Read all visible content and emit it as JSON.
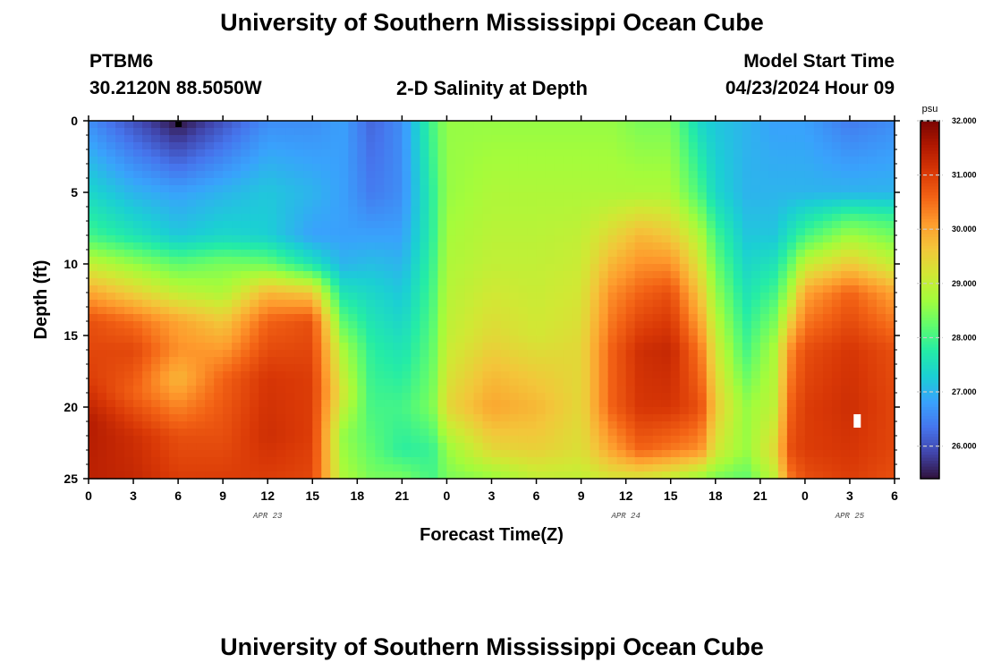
{
  "header": {
    "title": "University of Southern Mississippi Ocean Cube",
    "station": "PTBM6",
    "coords": "30.2120N  88.5050W",
    "plot_title": "2-D Salinity at Depth",
    "model_label": "Model Start Time",
    "model_time": "04/23/2024 Hour 09"
  },
  "footer": {
    "title": "University of Southern Mississippi Ocean Cube"
  },
  "chart_data": {
    "type": "heatmap",
    "title": "2-D Salinity at Depth",
    "xlabel": "Forecast Time(Z)",
    "ylabel": "Depth (ft)",
    "x_hours": [
      0,
      54
    ],
    "x_tick_labels": [
      "0",
      "3",
      "6",
      "9",
      "12",
      "15",
      "18",
      "21",
      "0",
      "3",
      "6",
      "9",
      "12",
      "15",
      "18",
      "21",
      "0",
      "3",
      "6"
    ],
    "date_labels": [
      {
        "hour": 12,
        "text": "APR 23"
      },
      {
        "hour": 36,
        "text": "APR 24"
      },
      {
        "hour": 51,
        "text": "APR 25"
      }
    ],
    "y_ticks": [
      0,
      5,
      10,
      15,
      20,
      25
    ],
    "ylim": [
      0,
      25
    ],
    "colorbar": {
      "unit": "psu",
      "range": [
        25.4,
        32.0
      ],
      "tick_labels": [
        "32.000",
        "31.000",
        "30.000",
        "29.000",
        "28.000",
        "27.000",
        "26.000"
      ],
      "tick_values": [
        32,
        31,
        30,
        29,
        28,
        27,
        26
      ],
      "colors": [
        "#30123b",
        "#4145ab",
        "#4675ed",
        "#39a2fc",
        "#1bcfd4",
        "#24eca6",
        "#61fc6c",
        "#a4fc3b",
        "#d1e834",
        "#f3c63a",
        "#fe9b2d",
        "#f36315",
        "#d93806",
        "#b11901",
        "#7a0402"
      ]
    },
    "salinity_columns": [
      {
        "hour": 0,
        "profile": [
          [
            0,
            26.6
          ],
          [
            5,
            27.4
          ],
          [
            8,
            28.0
          ],
          [
            10,
            29.0
          ],
          [
            12,
            30.0
          ],
          [
            14,
            30.8
          ],
          [
            18,
            31.0
          ],
          [
            21,
            31.5
          ],
          [
            25,
            31.4
          ]
        ]
      },
      {
        "hour": 3,
        "profile": [
          [
            0,
            26.0
          ],
          [
            5,
            27.0
          ],
          [
            8,
            27.6
          ],
          [
            10,
            28.6
          ],
          [
            12,
            29.5
          ],
          [
            14,
            30.5
          ],
          [
            16,
            30.9
          ],
          [
            19,
            30.6
          ],
          [
            22,
            31.2
          ],
          [
            25,
            31.3
          ]
        ]
      },
      {
        "hour": 6,
        "profile": [
          [
            0,
            25.4
          ],
          [
            5,
            26.8
          ],
          [
            8,
            27.2
          ],
          [
            10,
            28.2
          ],
          [
            12,
            29.0
          ],
          [
            14,
            30.0
          ],
          [
            16,
            30.2
          ],
          [
            18,
            29.8
          ],
          [
            22,
            30.8
          ],
          [
            25,
            31.0
          ]
        ]
      },
      {
        "hour": 9,
        "profile": [
          [
            0,
            26.0
          ],
          [
            5,
            27.0
          ],
          [
            8,
            27.4
          ],
          [
            10,
            28.4
          ],
          [
            12,
            28.8
          ],
          [
            14,
            29.6
          ],
          [
            18,
            30.6
          ],
          [
            22,
            30.8
          ],
          [
            25,
            31.0
          ]
        ]
      },
      {
        "hour": 12,
        "profile": [
          [
            0,
            26.6
          ],
          [
            5,
            27.2
          ],
          [
            8,
            27.3
          ],
          [
            10,
            28.3
          ],
          [
            12,
            29.8
          ],
          [
            14,
            30.6
          ],
          [
            18,
            31.1
          ],
          [
            22,
            31.2
          ],
          [
            25,
            31.0
          ]
        ]
      },
      {
        "hour": 15,
        "profile": [
          [
            0,
            26.6
          ],
          [
            5,
            27.0
          ],
          [
            8,
            26.8
          ],
          [
            10,
            27.6
          ],
          [
            12,
            29.6
          ],
          [
            14,
            30.8
          ],
          [
            18,
            31.0
          ],
          [
            22,
            31.0
          ],
          [
            25,
            30.9
          ]
        ]
      },
      {
        "hour": 17,
        "profile": [
          [
            0,
            26.8
          ],
          [
            5,
            26.8
          ],
          [
            8,
            26.8
          ],
          [
            10,
            27.0
          ],
          [
            12,
            27.6
          ],
          [
            16,
            28.8
          ],
          [
            19,
            29.2
          ],
          [
            22,
            28.6
          ],
          [
            25,
            28.8
          ]
        ]
      },
      {
        "hour": 19,
        "profile": [
          [
            0,
            26.2
          ],
          [
            5,
            26.4
          ],
          [
            8,
            26.8
          ],
          [
            12,
            27.4
          ],
          [
            16,
            27.8
          ],
          [
            20,
            28.0
          ],
          [
            23,
            28.2
          ],
          [
            25,
            28.4
          ]
        ]
      },
      {
        "hour": 21,
        "profile": [
          [
            0,
            26.6
          ],
          [
            5,
            26.6
          ],
          [
            8,
            26.8
          ],
          [
            12,
            27.2
          ],
          [
            16,
            27.6
          ],
          [
            20,
            28.0
          ],
          [
            23,
            27.8
          ],
          [
            25,
            28.4
          ]
        ]
      },
      {
        "hour": 23,
        "profile": [
          [
            0,
            28.0
          ],
          [
            5,
            27.8
          ],
          [
            8,
            27.8
          ],
          [
            12,
            28.0
          ],
          [
            16,
            28.2
          ],
          [
            20,
            28.4
          ],
          [
            23,
            27.9
          ],
          [
            25,
            28.0
          ]
        ]
      },
      {
        "hour": 24,
        "profile": [
          [
            0,
            28.6
          ],
          [
            5,
            28.6
          ],
          [
            10,
            28.8
          ],
          [
            15,
            29.0
          ],
          [
            20,
            29.4
          ],
          [
            23,
            28.6
          ],
          [
            25,
            28.4
          ]
        ]
      },
      {
        "hour": 27,
        "profile": [
          [
            0,
            28.6
          ],
          [
            5,
            28.8
          ],
          [
            10,
            29.0
          ],
          [
            15,
            29.4
          ],
          [
            18,
            29.8
          ],
          [
            20,
            30.0
          ],
          [
            23,
            29.4
          ],
          [
            25,
            28.6
          ]
        ]
      },
      {
        "hour": 30,
        "profile": [
          [
            0,
            28.6
          ],
          [
            5,
            28.8
          ],
          [
            10,
            29.0
          ],
          [
            15,
            29.2
          ],
          [
            18,
            29.6
          ],
          [
            20,
            29.8
          ],
          [
            23,
            29.5
          ],
          [
            25,
            29.0
          ]
        ]
      },
      {
        "hour": 33,
        "profile": [
          [
            0,
            28.6
          ],
          [
            5,
            28.8
          ],
          [
            8,
            29.0
          ],
          [
            12,
            29.2
          ],
          [
            16,
            29.4
          ],
          [
            20,
            29.4
          ],
          [
            23,
            29.3
          ],
          [
            25,
            29.0
          ]
        ]
      },
      {
        "hour": 35,
        "profile": [
          [
            0,
            28.6
          ],
          [
            5,
            28.8
          ],
          [
            8,
            29.4
          ],
          [
            12,
            30.2
          ],
          [
            16,
            30.6
          ],
          [
            20,
            30.6
          ],
          [
            23,
            30.0
          ],
          [
            25,
            29.2
          ]
        ]
      },
      {
        "hour": 37,
        "profile": [
          [
            0,
            28.4
          ],
          [
            5,
            28.8
          ],
          [
            8,
            29.8
          ],
          [
            12,
            30.6
          ],
          [
            16,
            31.2
          ],
          [
            20,
            31.1
          ],
          [
            23,
            30.6
          ],
          [
            25,
            29.2
          ]
        ]
      },
      {
        "hour": 39,
        "profile": [
          [
            0,
            28.4
          ],
          [
            5,
            28.8
          ],
          [
            8,
            29.6
          ],
          [
            12,
            30.8
          ],
          [
            16,
            31.3
          ],
          [
            20,
            31.1
          ],
          [
            23,
            30.4
          ],
          [
            25,
            29.0
          ]
        ]
      },
      {
        "hour": 41,
        "profile": [
          [
            0,
            27.4
          ],
          [
            5,
            28.0
          ],
          [
            8,
            28.8
          ],
          [
            12,
            29.6
          ],
          [
            16,
            30.4
          ],
          [
            20,
            30.8
          ],
          [
            23,
            30.2
          ],
          [
            25,
            28.6
          ]
        ]
      },
      {
        "hour": 42,
        "profile": [
          [
            0,
            27.2
          ],
          [
            5,
            27.4
          ],
          [
            8,
            28.0
          ],
          [
            12,
            28.6
          ],
          [
            16,
            29.2
          ],
          [
            20,
            29.6
          ],
          [
            23,
            29.2
          ],
          [
            25,
            28.4
          ]
        ]
      },
      {
        "hour": 44,
        "profile": [
          [
            0,
            27.0
          ],
          [
            5,
            27.0
          ],
          [
            8,
            27.2
          ],
          [
            12,
            27.6
          ],
          [
            16,
            28.0
          ],
          [
            20,
            28.6
          ],
          [
            23,
            28.6
          ],
          [
            25,
            28.2
          ]
        ]
      },
      {
        "hour": 46,
        "profile": [
          [
            0,
            26.8
          ],
          [
            5,
            27.0
          ],
          [
            8,
            27.2
          ],
          [
            12,
            28.0
          ],
          [
            16,
            28.8
          ],
          [
            20,
            29.0
          ],
          [
            23,
            29.4
          ],
          [
            25,
            29.0
          ]
        ]
      },
      {
        "hour": 47,
        "profile": [
          [
            0,
            26.8
          ],
          [
            5,
            27.0
          ],
          [
            8,
            27.6
          ],
          [
            12,
            28.8
          ],
          [
            16,
            30.2
          ],
          [
            20,
            30.6
          ],
          [
            23,
            30.8
          ],
          [
            25,
            30.4
          ]
        ]
      },
      {
        "hour": 48,
        "profile": [
          [
            0,
            26.8
          ],
          [
            5,
            27.0
          ],
          [
            8,
            28.0
          ],
          [
            10,
            29.0
          ],
          [
            12,
            30.0
          ],
          [
            16,
            30.8
          ],
          [
            20,
            31.0
          ],
          [
            23,
            31.0
          ],
          [
            25,
            30.8
          ]
        ]
      },
      {
        "hour": 51,
        "profile": [
          [
            0,
            26.4
          ],
          [
            5,
            27.0
          ],
          [
            7,
            28.2
          ],
          [
            10,
            29.6
          ],
          [
            12,
            30.6
          ],
          [
            16,
            31.1
          ],
          [
            20,
            31.2
          ],
          [
            23,
            31.1
          ],
          [
            25,
            31.0
          ]
        ]
      },
      {
        "hour": 54,
        "profile": [
          [
            0,
            26.6
          ],
          [
            5,
            27.0
          ],
          [
            7,
            28.0
          ],
          [
            10,
            29.0
          ],
          [
            12,
            30.0
          ],
          [
            16,
            30.8
          ],
          [
            20,
            30.9
          ],
          [
            23,
            30.9
          ],
          [
            25,
            30.8
          ]
        ]
      }
    ]
  }
}
